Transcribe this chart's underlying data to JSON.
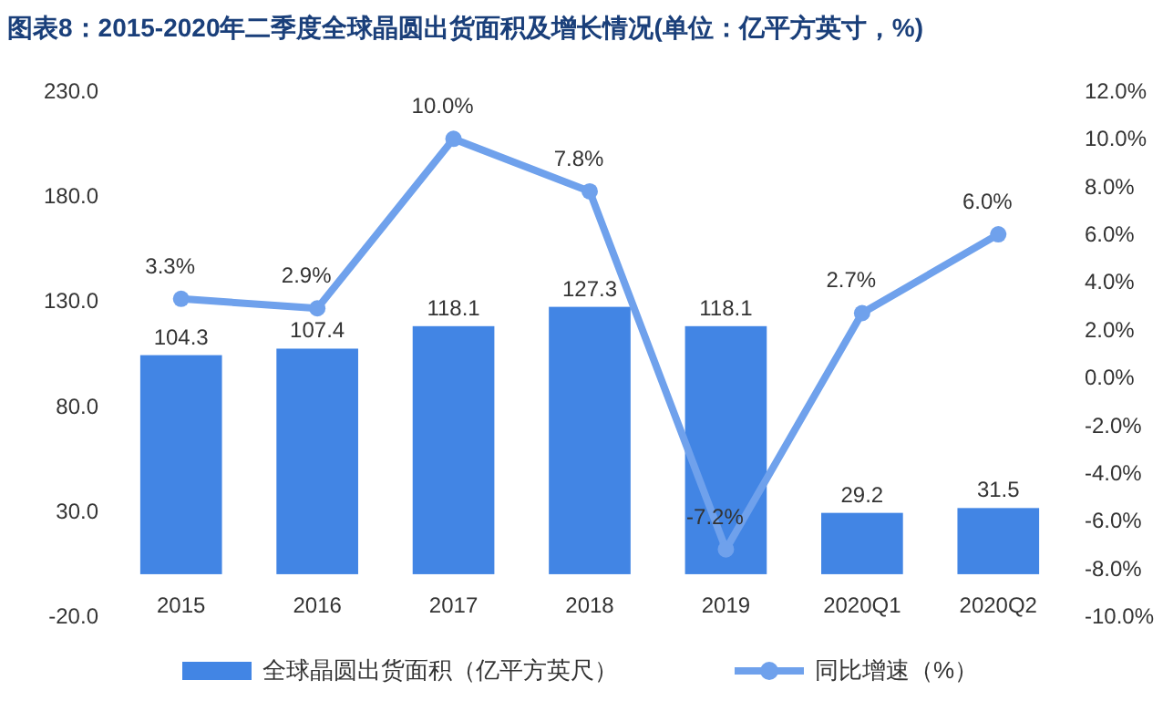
{
  "chart_data": {
    "type": "bar",
    "title": "图表8：2015-2020年二季度全球晶圆出货面积及增长情况(单位：亿平方英寸，%)",
    "categories": [
      "2015",
      "2016",
      "2017",
      "2018",
      "2019",
      "2020Q1",
      "2020Q2"
    ],
    "series": [
      {
        "name": "全球晶圆出货面积（亿平方英尺）",
        "color": "#4285e4",
        "values": [
          104.3,
          107.4,
          118.1,
          127.3,
          118.1,
          29.2,
          31.5
        ],
        "value_labels": [
          "104.3",
          "107.4",
          "118.1",
          "127.3",
          "118.1",
          "29.2",
          "31.5"
        ]
      },
      {
        "name": "同比增速（%）",
        "type": "line",
        "axis": "y2",
        "color": "#6fa1ec",
        "marker": "circle",
        "values": [
          3.3,
          2.9,
          10.0,
          7.8,
          -7.2,
          2.7,
          6.0
        ],
        "value_labels": [
          "3.3%",
          "2.9%",
          "10.0%",
          "7.8%",
          "-7.2%",
          "2.7%",
          "6.0%"
        ]
      }
    ],
    "ylim": [
      -20,
      230
    ],
    "yticks": [
      {
        "value": -20,
        "label": "-20.0"
      },
      {
        "value": 30,
        "label": "30.0"
      },
      {
        "value": 80,
        "label": "80.0"
      },
      {
        "value": 130,
        "label": "130.0"
      },
      {
        "value": 180,
        "label": "180.0"
      },
      {
        "value": 230,
        "label": "230.0"
      }
    ],
    "y2lim": [
      -10,
      12
    ],
    "y2ticks": [
      {
        "value": -10,
        "label": "-10.0%"
      },
      {
        "value": -8,
        "label": "-8.0%"
      },
      {
        "value": -6,
        "label": "-6.0%"
      },
      {
        "value": -4,
        "label": "-4.0%"
      },
      {
        "value": -2,
        "label": "-2.0%"
      },
      {
        "value": 0,
        "label": "0.0%"
      },
      {
        "value": 2,
        "label": "2.0%"
      },
      {
        "value": 4,
        "label": "4.0%"
      },
      {
        "value": 6,
        "label": "6.0%"
      },
      {
        "value": 8,
        "label": "8.0%"
      },
      {
        "value": 10,
        "label": "10.0%"
      },
      {
        "value": 12,
        "label": "12.0%"
      }
    ],
    "grid": false,
    "legend": "bottom"
  }
}
